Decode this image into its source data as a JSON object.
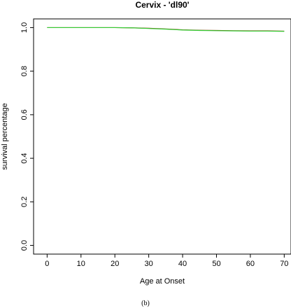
{
  "chart_data": {
    "type": "line",
    "title": "Cervix - 'dl90'",
    "xlabel": "Age at Onset",
    "ylabel": "survival percentage",
    "xlim": [
      -4,
      72
    ],
    "ylim": [
      -0.04,
      1.04
    ],
    "xticks": [
      0,
      10,
      20,
      30,
      40,
      50,
      60,
      70
    ],
    "xtick_labels": [
      "0",
      "10",
      "20",
      "30",
      "40",
      "50",
      "60",
      "70"
    ],
    "yticks": [
      0.0,
      0.2,
      0.4,
      0.6,
      0.8,
      1.0
    ],
    "ytick_labels": [
      "0.0",
      "0.2",
      "0.4",
      "0.6",
      "0.8",
      "1.0"
    ],
    "grid": false,
    "legend": "none",
    "series": [
      {
        "color": "#8b3a0f",
        "x": [
          0,
          10,
          20,
          25,
          30,
          35,
          40,
          45,
          50,
          55,
          60,
          65,
          70
        ],
        "y": [
          1.0,
          1.0,
          1.0,
          0.999,
          0.997,
          0.994,
          0.99,
          0.988,
          0.987,
          0.986,
          0.985,
          0.985,
          0.984
        ]
      },
      {
        "color": "#33cc33",
        "x": [
          0,
          10,
          20,
          25,
          30,
          35,
          40,
          45,
          50,
          55,
          60,
          65,
          70
        ],
        "y": [
          1.0,
          1.0,
          1.0,
          0.999,
          0.996,
          0.993,
          0.989,
          0.987,
          0.986,
          0.985,
          0.984,
          0.984,
          0.983
        ]
      }
    ]
  },
  "caption": "(b)"
}
